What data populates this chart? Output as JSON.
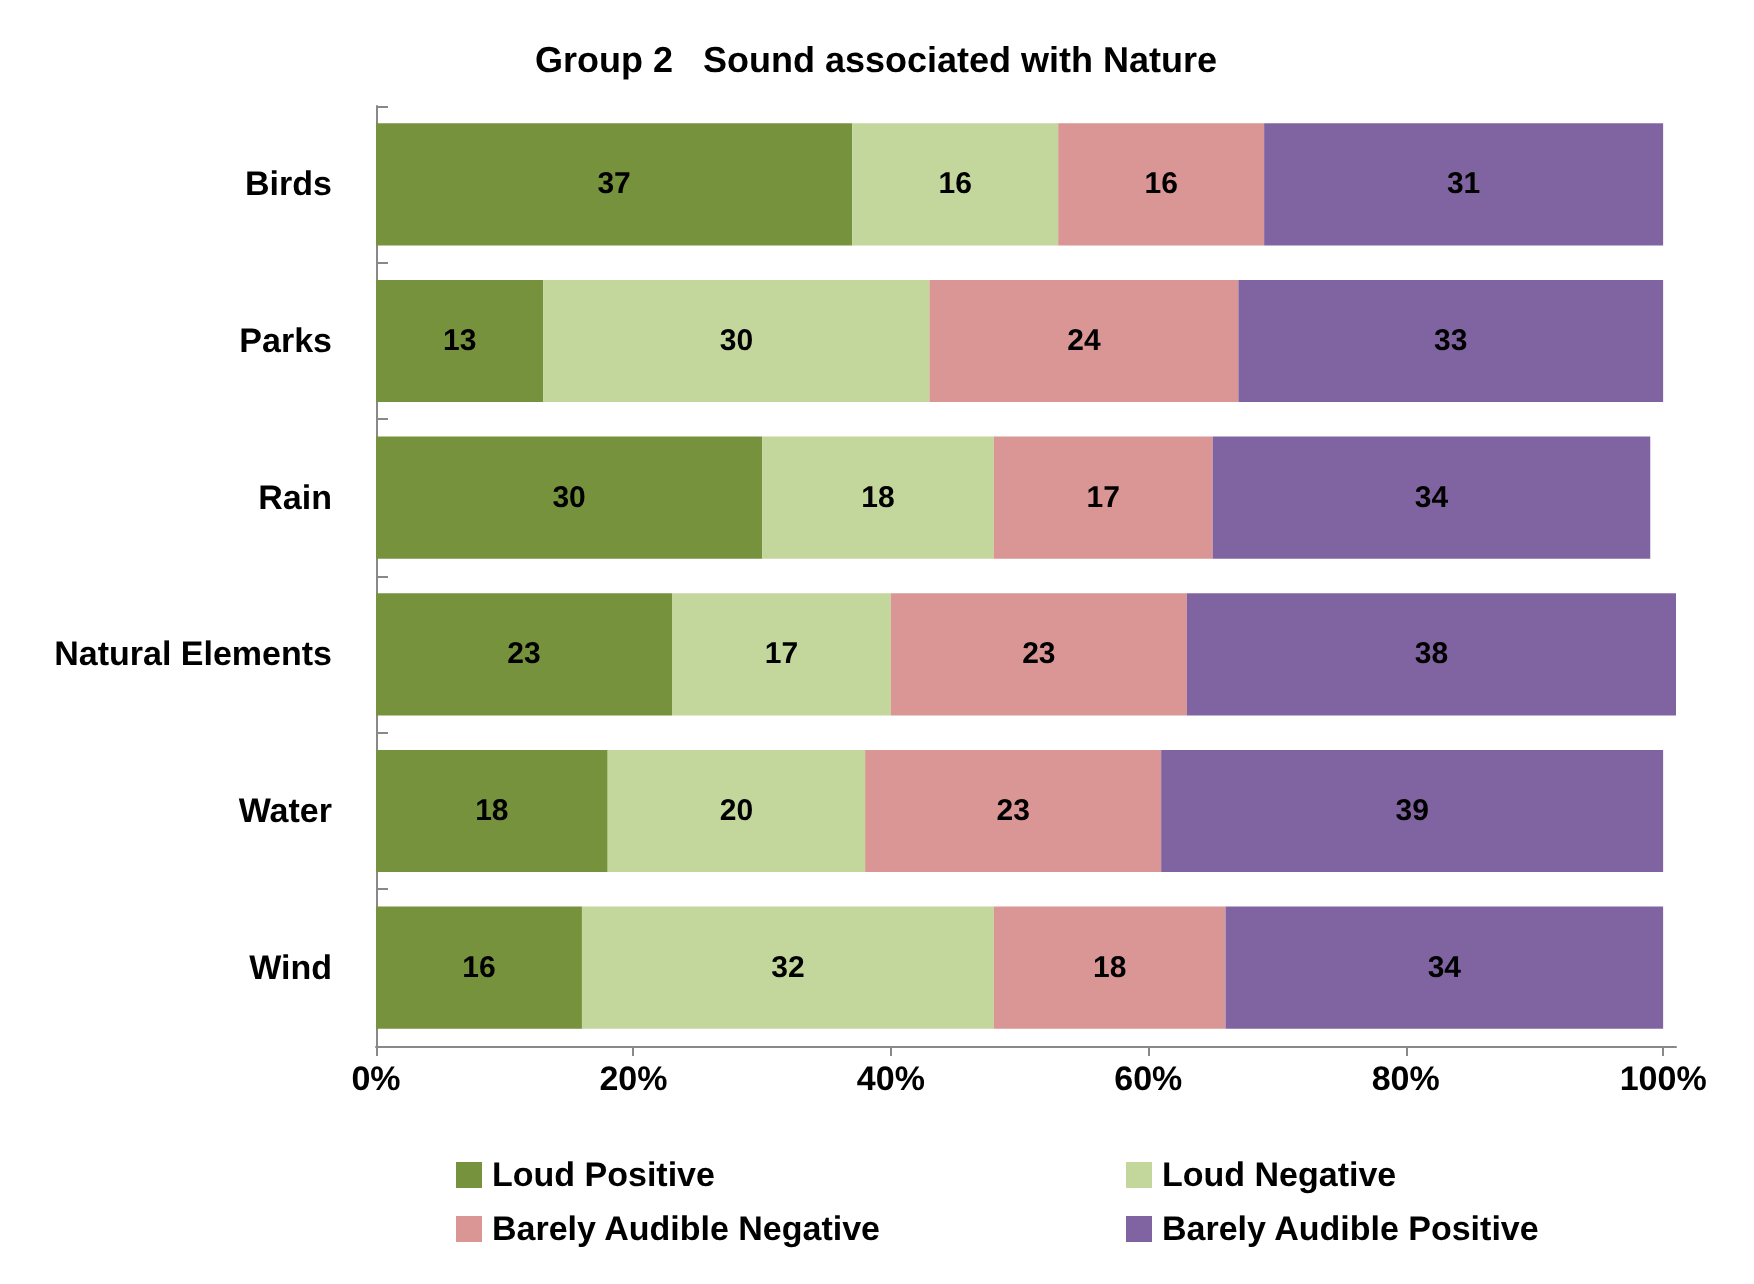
{
  "chart_data": {
    "type": "bar",
    "orientation": "horizontal",
    "stacked": true,
    "title": "Group 2   Sound associated with Nature",
    "categories": [
      "Birds",
      "Parks",
      "Rain",
      "Natural Elements",
      "Water",
      "Wind"
    ],
    "series": [
      {
        "name": "Loud Positive",
        "color": "#76923c",
        "values": [
          37,
          13,
          30,
          23,
          18,
          16
        ]
      },
      {
        "name": "Loud Negative",
        "color": "#c3d69b",
        "values": [
          16,
          30,
          18,
          17,
          20,
          32
        ]
      },
      {
        "name": "Barely Audible Negative",
        "color": "#d99694",
        "values": [
          16,
          24,
          17,
          23,
          23,
          18
        ]
      },
      {
        "name": "Barely Audible Positive",
        "color": "#8064a2",
        "values": [
          31,
          33,
          34,
          38,
          39,
          34
        ]
      }
    ],
    "xlim": [
      0,
      101
    ],
    "xticks": [
      {
        "value": 0,
        "label": "0%"
      },
      {
        "value": 20,
        "label": "20%"
      },
      {
        "value": 40,
        "label": "40%"
      },
      {
        "value": 60,
        "label": "60%"
      },
      {
        "value": 80,
        "label": "80%"
      },
      {
        "value": 100,
        "label": "100%"
      }
    ],
    "data_labels": true,
    "grid": false,
    "legend": "bottom"
  }
}
